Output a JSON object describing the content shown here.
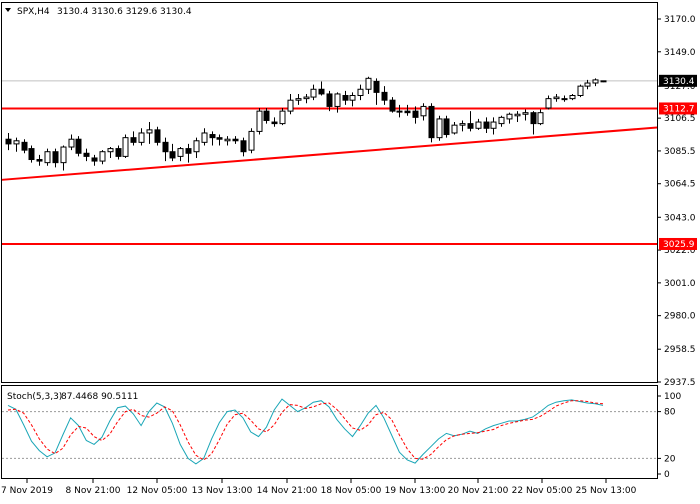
{
  "header": {
    "symbol": "SPX,H4",
    "ohlc": "3130.4 3130.6 3129.6 3130.4"
  },
  "stoch_header": {
    "name": "Stoch(5,3,3)",
    "values": "87.4468 90.5111"
  },
  "colors": {
    "bull_candle": "#ffffff",
    "bear_candle": "#000000",
    "level_line": "#ff0000",
    "level_label_bg": "#ff0000",
    "level_label_text": "#ffffff",
    "price_label_bg": "#000000",
    "price_label_text": "#ffffff",
    "main_line": "#1aa6b7",
    "signal_line": "#ff0000",
    "frame": "#000000"
  },
  "chart_data": [
    {
      "type": "candlestick",
      "title": "SPX,H4",
      "ylim": [
        2930,
        3185
      ],
      "y_ticks": [
        3170.0,
        3149.0,
        3127.0,
        3106.5,
        3085.5,
        3064.5,
        3043.0,
        3022.0,
        3001.0,
        2980.0,
        2958.5,
        2937.5
      ],
      "x_tick_labels": [
        "7 Nov 2019",
        "8 Nov 21:00",
        "12 Nov 05:00",
        "13 Nov 13:00",
        "14 Nov 21:00",
        "18 Nov 05:00",
        "19 Nov 13:00",
        "20 Nov 21:00",
        "22 Nov 05:00",
        "25 Nov 13:00"
      ],
      "current_price": "3130.4",
      "horizontal_levels": [
        {
          "label": "3112.7",
          "value": 3112.7
        },
        {
          "label": "3025.9",
          "value": 3025.9
        }
      ],
      "trendline": {
        "start_value": 3067.0,
        "end_value": 3100.5
      },
      "candles": [
        [
          3093.0,
          3097.0,
          3086.0,
          3090.0
        ],
        [
          3090.0,
          3094.0,
          3085.0,
          3092.0
        ],
        [
          3091.0,
          3093.0,
          3084.0,
          3086.0
        ],
        [
          3087.0,
          3089.0,
          3078.0,
          3080.0
        ],
        [
          3080.0,
          3083.0,
          3076.0,
          3079.0
        ],
        [
          3078.0,
          3087.0,
          3076.0,
          3085.0
        ],
        [
          3085.0,
          3087.0,
          3075.0,
          3078.0
        ],
        [
          3078.0,
          3089.0,
          3073.0,
          3088.0
        ],
        [
          3088.0,
          3096.0,
          3086.0,
          3093.0
        ],
        [
          3093.0,
          3095.0,
          3082.0,
          3084.0
        ],
        [
          3084.0,
          3087.0,
          3079.0,
          3082.0
        ],
        [
          3081.0,
          3083.0,
          3076.0,
          3079.0
        ],
        [
          3079.0,
          3086.0,
          3077.0,
          3085.0
        ],
        [
          3085.0,
          3088.0,
          3081.0,
          3087.0
        ],
        [
          3087.0,
          3089.0,
          3080.0,
          3082.0
        ],
        [
          3082.0,
          3096.0,
          3081.0,
          3094.0
        ],
        [
          3094.0,
          3098.0,
          3089.0,
          3091.0
        ],
        [
          3091.0,
          3100.0,
          3089.0,
          3097.0
        ],
        [
          3097.0,
          3104.0,
          3090.0,
          3099.0
        ],
        [
          3099.0,
          3101.0,
          3089.0,
          3091.0
        ],
        [
          3091.0,
          3094.0,
          3079.0,
          3085.0
        ],
        [
          3085.0,
          3090.0,
          3079.0,
          3081.0
        ],
        [
          3082.0,
          3088.0,
          3079.0,
          3087.0
        ],
        [
          3087.0,
          3090.0,
          3078.0,
          3084.0
        ],
        [
          3085.0,
          3094.0,
          3081.0,
          3092.0
        ],
        [
          3091.0,
          3100.0,
          3089.0,
          3097.0
        ],
        [
          3096.0,
          3098.0,
          3089.0,
          3094.0
        ],
        [
          3094.0,
          3096.0,
          3089.0,
          3093.0
        ],
        [
          3092.0,
          3095.0,
          3089.0,
          3093.0
        ],
        [
          3093.0,
          3095.0,
          3090.0,
          3092.0
        ],
        [
          3092.0,
          3094.0,
          3082.0,
          3085.0
        ],
        [
          3086.0,
          3100.0,
          3084.0,
          3098.0
        ],
        [
          3098.0,
          3113.0,
          3096.0,
          3111.0
        ],
        [
          3111.0,
          3113.0,
          3103.0,
          3105.0
        ],
        [
          3104.0,
          3107.0,
          3101.0,
          3103.0
        ],
        [
          3103.0,
          3113.0,
          3102.0,
          3111.0
        ],
        [
          3111.0,
          3122.0,
          3109.0,
          3118.0
        ],
        [
          3118.0,
          3122.0,
          3115.0,
          3119.0
        ],
        [
          3119.0,
          3122.0,
          3116.0,
          3120.0
        ],
        [
          3120.0,
          3128.0,
          3118.0,
          3125.0
        ],
        [
          3125.0,
          3130.0,
          3121.0,
          3122.0
        ],
        [
          3122.0,
          3124.0,
          3111.0,
          3114.0
        ],
        [
          3114.0,
          3123.0,
          3110.0,
          3122.0
        ],
        [
          3121.0,
          3124.0,
          3115.0,
          3118.0
        ],
        [
          3118.0,
          3123.0,
          3114.0,
          3121.0
        ],
        [
          3121.0,
          3128.0,
          3118.0,
          3125.0
        ],
        [
          3125.0,
          3133.0,
          3122.0,
          3132.0
        ],
        [
          3130.0,
          3132.0,
          3115.0,
          3123.0
        ],
        [
          3123.0,
          3127.0,
          3115.0,
          3118.0
        ],
        [
          3118.0,
          3120.0,
          3110.0,
          3111.0
        ],
        [
          3111.0,
          3115.0,
          3107.0,
          3111.0
        ],
        [
          3111.0,
          3115.0,
          3108.0,
          3110.0
        ],
        [
          3111.0,
          3114.0,
          3103.0,
          3107.0
        ],
        [
          3108.0,
          3116.0,
          3105.0,
          3114.0
        ],
        [
          3114.0,
          3116.0,
          3091.0,
          3094.0
        ],
        [
          3094.0,
          3108.0,
          3092.0,
          3106.0
        ],
        [
          3106.0,
          3108.0,
          3094.0,
          3096.0
        ],
        [
          3097.0,
          3104.0,
          3096.0,
          3102.0
        ],
        [
          3102.0,
          3105.0,
          3098.0,
          3103.0
        ],
        [
          3103.0,
          3111.0,
          3098.0,
          3100.0
        ],
        [
          3100.0,
          3106.0,
          3099.0,
          3104.0
        ],
        [
          3104.0,
          3107.0,
          3097.0,
          3100.0
        ],
        [
          3100.0,
          3107.0,
          3096.0,
          3104.0
        ],
        [
          3103.0,
          3108.0,
          3101.0,
          3107.0
        ],
        [
          3106.0,
          3110.0,
          3103.0,
          3109.0
        ],
        [
          3108.0,
          3111.0,
          3104.0,
          3109.0
        ],
        [
          3109.0,
          3112.0,
          3105.0,
          3110.0
        ],
        [
          3110.0,
          3111.0,
          3096.0,
          3103.0
        ],
        [
          3103.0,
          3112.0,
          3102.0,
          3110.0
        ],
        [
          3113.0,
          3121.0,
          3112.0,
          3119.0
        ],
        [
          3119.0,
          3122.0,
          3117.0,
          3120.0
        ],
        [
          3119.0,
          3121.0,
          3117.0,
          3119.0
        ],
        [
          3119.0,
          3122.0,
          3118.0,
          3121.0
        ],
        [
          3121.0,
          3128.0,
          3120.0,
          3127.0
        ],
        [
          3127.0,
          3131.0,
          3125.0,
          3129.0
        ],
        [
          3129.0,
          3132.0,
          3127.0,
          3131.0
        ],
        [
          3130.4,
          3130.6,
          3129.6,
          3130.4
        ]
      ]
    },
    {
      "type": "line",
      "title": "Stoch(5,3,3)",
      "ylim": [
        0,
        100
      ],
      "y_ticks": [
        "100",
        "80",
        "20",
        "0"
      ],
      "levels": [
        80,
        20
      ],
      "series": [
        {
          "name": "main",
          "values": [
            88,
            83,
            63,
            42,
            30,
            22,
            27,
            50,
            72,
            62,
            43,
            38,
            47,
            68,
            85,
            87,
            77,
            62,
            80,
            91,
            86,
            65,
            38,
            20,
            13,
            20,
            45,
            66,
            80,
            82,
            72,
            54,
            48,
            60,
            82,
            96,
            88,
            80,
            85,
            92,
            94,
            86,
            70,
            58,
            48,
            62,
            78,
            88,
            72,
            50,
            28,
            18,
            14,
            25,
            35,
            45,
            52,
            49,
            51,
            55,
            52,
            58,
            62,
            65,
            68,
            68,
            70,
            73,
            80,
            88,
            92,
            94,
            95,
            93,
            91,
            90,
            88
          ]
        },
        {
          "name": "signal",
          "values": [
            82,
            83,
            78,
            63,
            45,
            32,
            26,
            33,
            50,
            61,
            59,
            48,
            43,
            51,
            67,
            80,
            83,
            75,
            73,
            78,
            86,
            81,
            63,
            41,
            24,
            18,
            26,
            44,
            64,
            76,
            78,
            69,
            58,
            54,
            63,
            79,
            89,
            88,
            84,
            86,
            90,
            91,
            83,
            71,
            59,
            56,
            63,
            76,
            79,
            70,
            50,
            32,
            20,
            19,
            25,
            35,
            44,
            49,
            51,
            52,
            53,
            55,
            57,
            62,
            65,
            67,
            69,
            70,
            74,
            80,
            87,
            91,
            94,
            94,
            93,
            91,
            90
          ]
        }
      ]
    }
  ]
}
